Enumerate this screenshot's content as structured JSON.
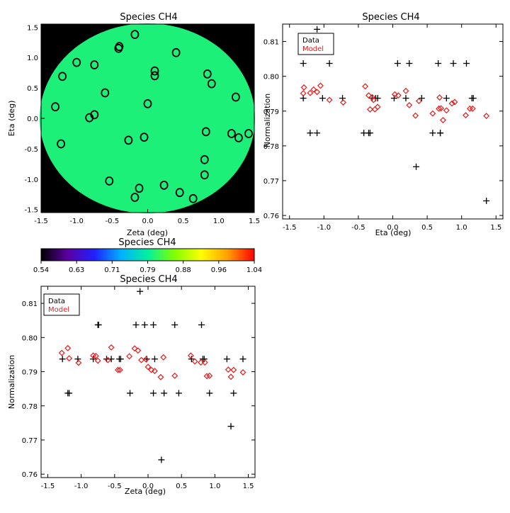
{
  "colors": {
    "background": "#ffffff",
    "disk_fill": "#1df079",
    "disk_background": "#000000",
    "data_marker": "#000000",
    "model_marker": "#e51b1b"
  },
  "colorbar": {
    "title": "Species CH4",
    "ticks": [
      "0.54",
      "0.63",
      "0.71",
      "0.79",
      "0.88",
      "0.96",
      "1.04"
    ],
    "stops": [
      "#000000",
      "#5b00a0",
      "#2020ff",
      "#00b0ff",
      "#00f0a0",
      "#80ff00",
      "#ffff00",
      "#ffa000",
      "#ff0000"
    ]
  },
  "chart_data": [
    {
      "id": "map",
      "type": "scatter",
      "title": "Species CH4",
      "xlabel": "Zeta (deg)",
      "ylabel": "Eta (deg)",
      "xlim": [
        -1.5,
        1.5
      ],
      "ylim": [
        -1.55,
        1.55
      ],
      "xticks": [
        "-1.5",
        "-1.0",
        "-0.5",
        "0.0",
        "0.5",
        "1.0",
        "1.5"
      ],
      "yticks": [
        "-1.5",
        "-1.0",
        "-0.5",
        "0.0",
        "0.5",
        "1.0",
        "1.5"
      ],
      "disk_radius": 1.52,
      "points": [
        [
          -0.18,
          1.38
        ],
        [
          -0.4,
          1.18
        ],
        [
          -0.41,
          1.15
        ],
        [
          0.4,
          1.08
        ],
        [
          -1.0,
          0.92
        ],
        [
          -0.75,
          0.88
        ],
        [
          -1.2,
          0.69
        ],
        [
          0.84,
          0.73
        ],
        [
          0.1,
          0.78
        ],
        [
          0.1,
          0.7
        ],
        [
          0.9,
          0.57
        ],
        [
          -0.6,
          0.42
        ],
        [
          1.24,
          0.35
        ],
        [
          0.0,
          0.24
        ],
        [
          -1.3,
          0.19
        ],
        [
          -0.75,
          0.06
        ],
        [
          -0.82,
          0.01
        ],
        [
          0.82,
          -0.22
        ],
        [
          1.18,
          -0.25
        ],
        [
          1.28,
          -0.32
        ],
        [
          1.42,
          -0.25
        ],
        [
          -0.05,
          -0.31
        ],
        [
          -0.27,
          -0.36
        ],
        [
          -1.22,
          -0.42
        ],
        [
          0.8,
          -0.68
        ],
        [
          0.8,
          -0.93
        ],
        [
          -0.54,
          -1.03
        ],
        [
          0.23,
          -1.1
        ],
        [
          -0.12,
          -1.15
        ],
        [
          0.45,
          -1.22
        ],
        [
          -0.18,
          -1.3
        ],
        [
          0.64,
          -1.32
        ]
      ]
    },
    {
      "id": "eta",
      "type": "scatter",
      "title": "Species CH4",
      "xlabel": "Eta (deg)",
      "ylabel": "Normalization",
      "xlim": [
        -1.6,
        1.6
      ],
      "ylim": [
        0.759,
        0.815
      ],
      "xticks": [
        -1.5,
        -1.0,
        -0.5,
        0.0,
        0.5,
        1.0,
        1.5
      ],
      "yticks": [
        "0.76",
        "0.77",
        "0.78",
        "0.79",
        "0.80",
        "0.81"
      ],
      "legend": [
        "Data",
        "Model"
      ],
      "legend_position": "top-left",
      "series": [
        {
          "name": "Data",
          "marker": "plus",
          "points": [
            [
              -1.3,
              0.8037
            ],
            [
              -1.3,
              0.7937
            ],
            [
              -1.2,
              0.7837
            ],
            [
              -1.1,
              0.7837
            ],
            [
              -1.1,
              0.8135
            ],
            [
              -1.02,
              0.7937
            ],
            [
              -0.92,
              0.8037
            ],
            [
              -0.73,
              0.7937
            ],
            [
              -0.42,
              0.7837
            ],
            [
              -0.35,
              0.7837
            ],
            [
              -0.33,
              0.7837
            ],
            [
              -0.3,
              0.7937
            ],
            [
              -0.25,
              0.7937
            ],
            [
              -0.22,
              0.7937
            ],
            [
              0.02,
              0.7937
            ],
            [
              0.07,
              0.8037
            ],
            [
              0.19,
              0.7937
            ],
            [
              0.24,
              0.8037
            ],
            [
              0.34,
              0.774
            ],
            [
              0.42,
              0.7937
            ],
            [
              0.58,
              0.7837
            ],
            [
              0.66,
              0.8037
            ],
            [
              0.69,
              0.7837
            ],
            [
              0.69,
              0.7837
            ],
            [
              0.78,
              0.7937
            ],
            [
              0.88,
              0.8037
            ],
            [
              1.07,
              0.8037
            ],
            [
              1.15,
              0.7937
            ],
            [
              1.17,
              0.7937
            ],
            [
              1.36,
              0.7642
            ]
          ]
        },
        {
          "name": "Model",
          "marker": "diamond",
          "points": [
            [
              -1.29,
              0.7968
            ],
            [
              -1.3,
              0.7951
            ],
            [
              -1.2,
              0.7952
            ],
            [
              -1.15,
              0.7962
            ],
            [
              -1.1,
              0.7955
            ],
            [
              -1.05,
              0.7973
            ],
            [
              -0.92,
              0.7932
            ],
            [
              -0.72,
              0.7925
            ],
            [
              -0.4,
              0.7971
            ],
            [
              -0.35,
              0.7945
            ],
            [
              -0.33,
              0.7905
            ],
            [
              -0.28,
              0.7932
            ],
            [
              -0.26,
              0.7905
            ],
            [
              -0.22,
              0.7912
            ],
            [
              -0.3,
              0.794
            ],
            [
              0.03,
              0.7948
            ],
            [
              0.08,
              0.7945
            ],
            [
              0.19,
              0.7958
            ],
            [
              0.24,
              0.7917
            ],
            [
              0.33,
              0.7887
            ],
            [
              0.38,
              0.7929
            ],
            [
              0.58,
              0.7893
            ],
            [
              0.67,
              0.7907
            ],
            [
              0.7,
              0.7908
            ],
            [
              0.68,
              0.7939
            ],
            [
              0.73,
              0.7874
            ],
            [
              0.78,
              0.7902
            ],
            [
              0.86,
              0.7922
            ],
            [
              0.9,
              0.7926
            ],
            [
              1.06,
              0.7888
            ],
            [
              1.12,
              0.7907
            ],
            [
              1.16,
              0.7907
            ],
            [
              1.36,
              0.7886
            ]
          ]
        }
      ]
    },
    {
      "id": "zeta",
      "type": "scatter",
      "title": "Species CH4",
      "xlabel": "Zeta (deg)",
      "ylabel": "Normalization",
      "xlim": [
        -1.6,
        1.6
      ],
      "ylim": [
        0.759,
        0.815
      ],
      "xticks": [
        -1.5,
        -1.0,
        -0.5,
        0.0,
        0.5,
        1.0,
        1.5
      ],
      "yticks": [
        "0.76",
        "0.77",
        "0.78",
        "0.79",
        "0.80",
        "0.81"
      ],
      "legend": [
        "Data",
        "Model"
      ],
      "legend_position": "top-left",
      "series": [
        {
          "name": "Data",
          "marker": "plus",
          "points": [
            [
              -1.28,
              0.7937
            ],
            [
              -1.2,
              0.7837
            ],
            [
              -1.18,
              0.7837
            ],
            [
              -1.05,
              0.7937
            ],
            [
              -0.82,
              0.7937
            ],
            [
              -0.75,
              0.8037
            ],
            [
              -0.74,
              0.8037
            ],
            [
              -0.62,
              0.7937
            ],
            [
              -0.55,
              0.7937
            ],
            [
              -0.43,
              0.7937
            ],
            [
              -0.41,
              0.7937
            ],
            [
              -0.27,
              0.7837
            ],
            [
              -0.18,
              0.8037
            ],
            [
              -0.12,
              0.8135
            ],
            [
              -0.05,
              0.8037
            ],
            [
              -0.02,
              0.7937
            ],
            [
              0.08,
              0.8037
            ],
            [
              0.08,
              0.7837
            ],
            [
              0.1,
              0.7937
            ],
            [
              0.2,
              0.7642
            ],
            [
              0.24,
              0.7837
            ],
            [
              0.4,
              0.8037
            ],
            [
              0.46,
              0.7837
            ],
            [
              0.65,
              0.7937
            ],
            [
              0.8,
              0.8037
            ],
            [
              0.82,
              0.7937
            ],
            [
              0.84,
              0.7937
            ],
            [
              0.92,
              0.7837
            ],
            [
              1.18,
              0.7937
            ],
            [
              1.24,
              0.774
            ],
            [
              1.28,
              0.7837
            ],
            [
              1.42,
              0.7937
            ]
          ]
        },
        {
          "name": "Model",
          "marker": "diamond",
          "points": [
            [
              -1.29,
              0.7955
            ],
            [
              -1.2,
              0.7969
            ],
            [
              -1.18,
              0.7939
            ],
            [
              -1.04,
              0.7926
            ],
            [
              -0.82,
              0.7947
            ],
            [
              -0.78,
              0.7946
            ],
            [
              -0.75,
              0.7932
            ],
            [
              -0.6,
              0.7934
            ],
            [
              -0.55,
              0.7971
            ],
            [
              -0.45,
              0.7905
            ],
            [
              -0.42,
              0.7905
            ],
            [
              -0.28,
              0.7945
            ],
            [
              -0.2,
              0.7968
            ],
            [
              -0.15,
              0.7962
            ],
            [
              -0.1,
              0.7934
            ],
            [
              -0.03,
              0.7936
            ],
            [
              0.0,
              0.7914
            ],
            [
              0.05,
              0.7905
            ],
            [
              0.1,
              0.7902
            ],
            [
              0.19,
              0.7884
            ],
            [
              0.23,
              0.7942
            ],
            [
              0.4,
              0.7888
            ],
            [
              0.64,
              0.7947
            ],
            [
              0.7,
              0.793
            ],
            [
              0.79,
              0.7927
            ],
            [
              0.85,
              0.7927
            ],
            [
              0.88,
              0.7887
            ],
            [
              0.92,
              0.7888
            ],
            [
              1.2,
              0.7906
            ],
            [
              1.24,
              0.7885
            ],
            [
              1.28,
              0.7905
            ],
            [
              1.42,
              0.7898
            ]
          ]
        }
      ]
    }
  ]
}
